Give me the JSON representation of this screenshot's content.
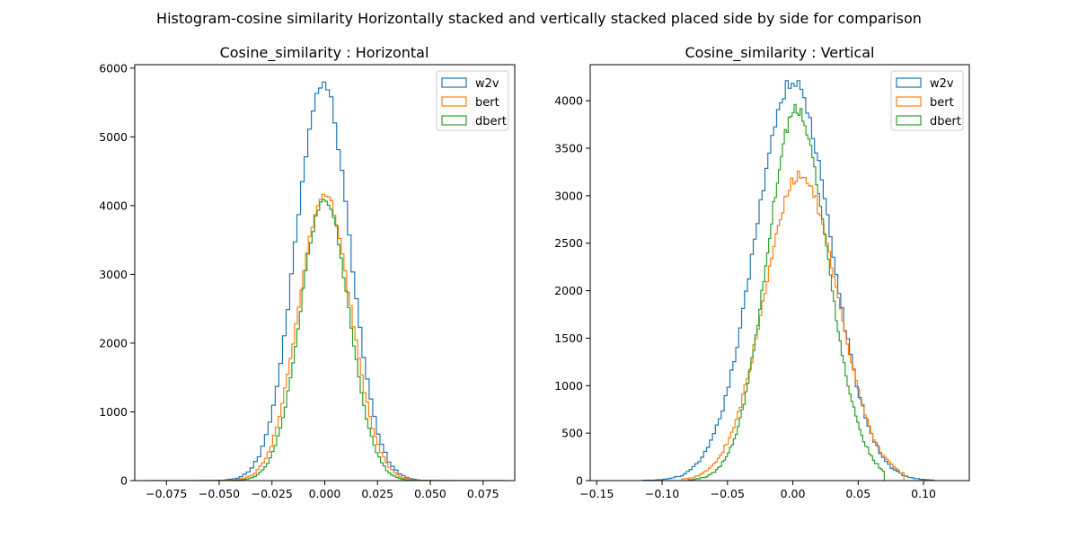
{
  "figure": {
    "suptitle": "Histogram-cosine similarity Horizontally stacked and vertically stacked placed side by side for comparison"
  },
  "chart_data": [
    {
      "type": "histogram",
      "title": "Cosine_similarity : Horizontal",
      "xlabel": "",
      "ylabel": "",
      "xlim": [
        -0.09,
        0.09
      ],
      "ylim": [
        0,
        6050
      ],
      "xticks": [
        -0.075,
        -0.05,
        -0.025,
        0.0,
        0.025,
        0.05,
        0.075
      ],
      "xtick_labels": [
        "−0.075",
        "−0.050",
        "−0.025",
        "0.000",
        "0.025",
        "0.050",
        "0.075"
      ],
      "yticks": [
        0,
        1000,
        2000,
        3000,
        4000,
        5000,
        6000
      ],
      "ytick_labels": [
        "0",
        "1000",
        "2000",
        "3000",
        "4000",
        "5000",
        "6000"
      ],
      "legend_position": "top-right",
      "series": [
        {
          "name": "w2v",
          "color": "#1f77b4",
          "x_range": [
            -0.085,
            0.086
          ],
          "bins": 100,
          "center": -0.001,
          "sigma": 0.0128,
          "peak": 5780
        },
        {
          "name": "bert",
          "color": "#ff7f0e",
          "x_range": [
            -0.065,
            0.065
          ],
          "bins": 100,
          "center": 0.0,
          "sigma": 0.0124,
          "peak": 4150
        },
        {
          "name": "dbert",
          "color": "#2ca02c",
          "x_range": [
            -0.06,
            0.06
          ],
          "bins": 100,
          "center": 0.0,
          "sigma": 0.0115,
          "peak": 4080
        }
      ]
    },
    {
      "type": "histogram",
      "title": "Cosine_similarity : Vertical",
      "xlabel": "",
      "ylabel": "",
      "xlim": [
        -0.155,
        0.135
      ],
      "ylim": [
        0,
        4380
      ],
      "xticks": [
        -0.15,
        -0.1,
        -0.05,
        0.0,
        0.05,
        0.1
      ],
      "xtick_labels": [
        "−0.15",
        "−0.10",
        "−0.05",
        "0.00",
        "0.05",
        "0.10"
      ],
      "yticks": [
        0,
        500,
        1000,
        1500,
        2000,
        2500,
        3000,
        3500,
        4000
      ],
      "ytick_labels": [
        "0",
        "500",
        "1000",
        "1500",
        "2000",
        "2500",
        "3000",
        "3500",
        "4000"
      ],
      "legend_position": "top-right",
      "series": [
        {
          "name": "w2v",
          "color": "#1f77b4",
          "x_range": [
            -0.115,
            0.108
          ],
          "bins": 100,
          "center": 0.0,
          "sigma": 0.029,
          "peak": 4200
        },
        {
          "name": "bert",
          "color": "#ff7f0e",
          "x_range": [
            -0.085,
            0.085
          ],
          "bins": 100,
          "center": 0.012,
          "sigma": 0.0285,
          "peak": 3230,
          "skew": -0.9
        },
        {
          "name": "dbert",
          "color": "#2ca02c",
          "x_range": [
            -0.08,
            0.07
          ],
          "bins": 100,
          "center": 0.01,
          "sigma": 0.0245,
          "peak": 3920,
          "skew": -1.3
        }
      ]
    }
  ]
}
